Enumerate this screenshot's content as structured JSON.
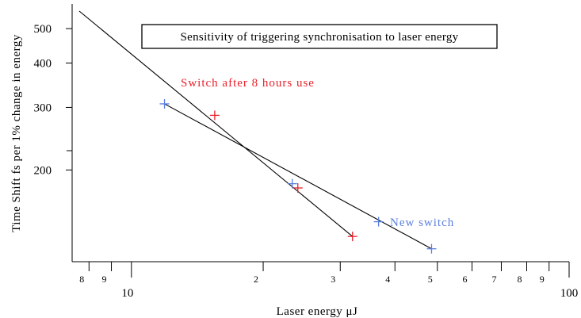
{
  "chart_data": {
    "type": "scatter",
    "title": "Sensitivity of triggering synchronisation to laser energy",
    "xlabel": "Laser energy μJ",
    "ylabel": "Time Shift fs per 1% change in energy",
    "x_scale": "log",
    "y_scale": "log",
    "xlim": [
      7.6,
      100
    ],
    "ylim": [
      115,
      560
    ],
    "x_ticks": [
      {
        "value": 8,
        "label": "8"
      },
      {
        "value": 9,
        "label": "9"
      },
      {
        "value": 10,
        "label": "10"
      },
      {
        "value": 20,
        "label": "2"
      },
      {
        "value": 30,
        "label": "3"
      },
      {
        "value": 40,
        "label": "4"
      },
      {
        "value": 50,
        "label": "5"
      },
      {
        "value": 60,
        "label": "6"
      },
      {
        "value": 70,
        "label": "7"
      },
      {
        "value": 80,
        "label": "8"
      },
      {
        "value": 90,
        "label": "9"
      },
      {
        "value": 100,
        "label": "100"
      }
    ],
    "y_ticks": [
      {
        "value": 200,
        "label": "200"
      },
      {
        "value": 300,
        "label": "300"
      },
      {
        "value": 400,
        "label": "400"
      },
      {
        "value": 500,
        "label": "500"
      }
    ],
    "grid": false,
    "series": [
      {
        "name": "Switch after 8 hours use",
        "color": "#e8202a",
        "marker": "plus",
        "points": [
          [
            15.5,
            285
          ],
          [
            24,
            178
          ],
          [
            32,
            130
          ]
        ],
        "fit": [
          [
            7.6,
            560
          ],
          [
            32,
            130
          ]
        ]
      },
      {
        "name": "New switch",
        "color": "#5b7fe0",
        "marker": "plus",
        "points": [
          [
            11.9,
            307
          ],
          [
            23.3,
            183
          ],
          [
            36.7,
            143
          ],
          [
            48.5,
            120
          ]
        ],
        "fit": [
          [
            11.9,
            307
          ],
          [
            48.5,
            120
          ]
        ]
      }
    ]
  }
}
